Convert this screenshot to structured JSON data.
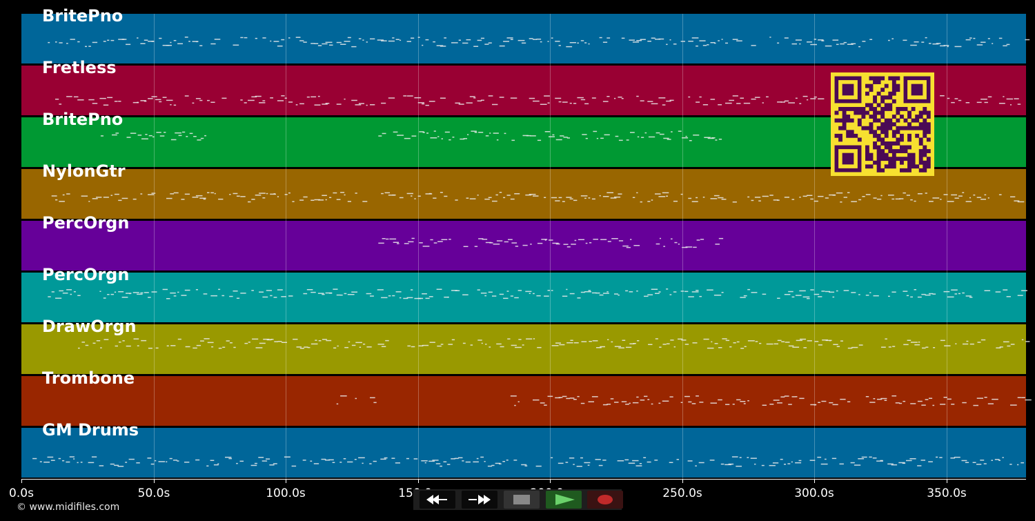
{
  "tracks": [
    {
      "name": "BritePno",
      "color": "#006699"
    },
    {
      "name": "Fretless",
      "color": "#990033"
    },
    {
      "name": "BritePno",
      "color": "#009933"
    },
    {
      "name": "NylonGtr",
      "color": "#996600"
    },
    {
      "name": "PercOrgn",
      "color": "#660099"
    },
    {
      "name": "PercOrgn",
      "color": "#009999"
    },
    {
      "name": "DrawOrgn",
      "color": "#999900"
    },
    {
      "name": "Trombone",
      "color": "#992600"
    },
    {
      "name": "GM Drums",
      "color": "#006699"
    }
  ],
  "timeline": {
    "ticks": [
      "0.0s",
      "50.0s",
      "100.0s",
      "150.0s",
      "200.0s",
      "250.0s",
      "300.0s",
      "350.0s"
    ],
    "tick_seconds": [
      0,
      50,
      100,
      150,
      200,
      250,
      300,
      350
    ],
    "max_seconds": 380
  },
  "copyright": "© www.midifiles.com",
  "controls": {
    "rewind": "rewind-icon",
    "fast_forward": "fast-forward-icon",
    "stop": "stop-icon",
    "play": "play-icon",
    "record": "record-icon",
    "colors": {
      "play": "#2e8b2e",
      "record": "#c02a2a",
      "stop": "#888888"
    }
  },
  "qr_code": {
    "fg": "#4b0a55",
    "bg": "#f7e030"
  }
}
